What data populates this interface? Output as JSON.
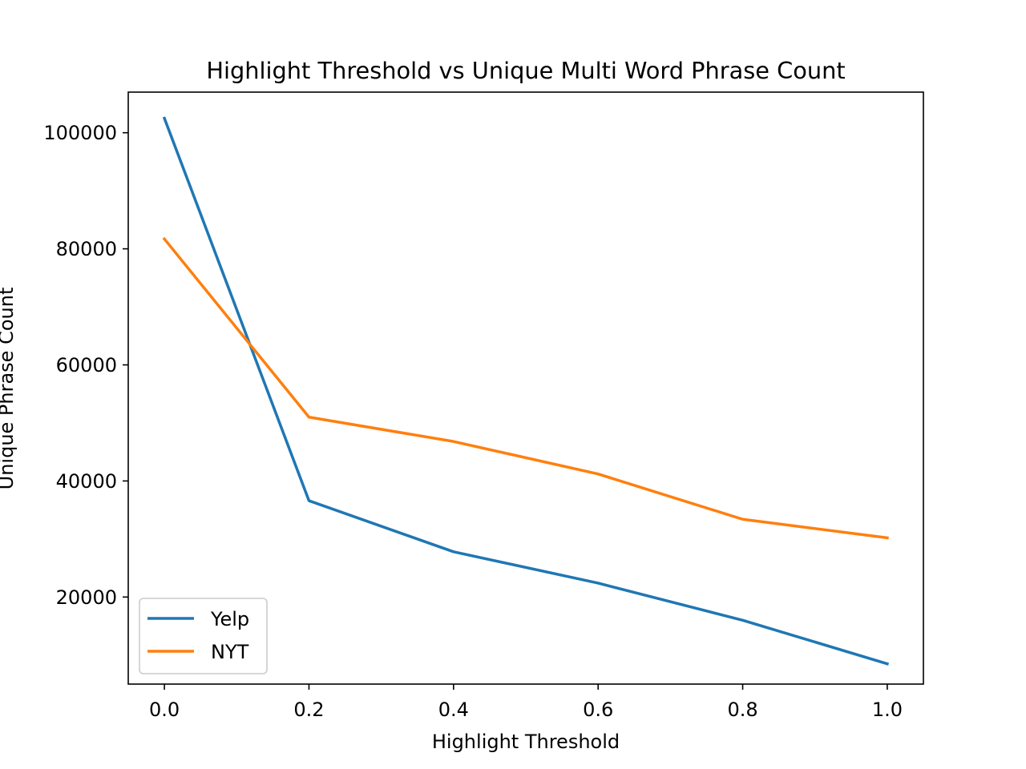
{
  "chart_data": {
    "type": "line",
    "title": "Highlight Threshold vs Unique Multi Word Phrase Count",
    "xlabel": "Highlight Threshold",
    "ylabel": "Unique Phrase Count",
    "x": [
      0.0,
      0.2,
      0.4,
      0.6,
      0.8,
      1.0
    ],
    "xticks": [
      "0.0",
      "0.2",
      "0.4",
      "0.6",
      "0.8",
      "1.0"
    ],
    "yticks": [
      "20000",
      "40000",
      "60000",
      "80000",
      "100000"
    ],
    "xlim": [
      -0.05,
      1.05
    ],
    "ylim": [
      5000,
      107000
    ],
    "grid": false,
    "legend_position": "lower-left",
    "series": [
      {
        "name": "Yelp",
        "color": "#1f77b4",
        "values": [
          102500,
          36600,
          27800,
          22400,
          16000,
          8500
        ]
      },
      {
        "name": "NYT",
        "color": "#ff7f0e",
        "values": [
          81700,
          51000,
          46800,
          41200,
          33400,
          30200
        ]
      }
    ]
  }
}
